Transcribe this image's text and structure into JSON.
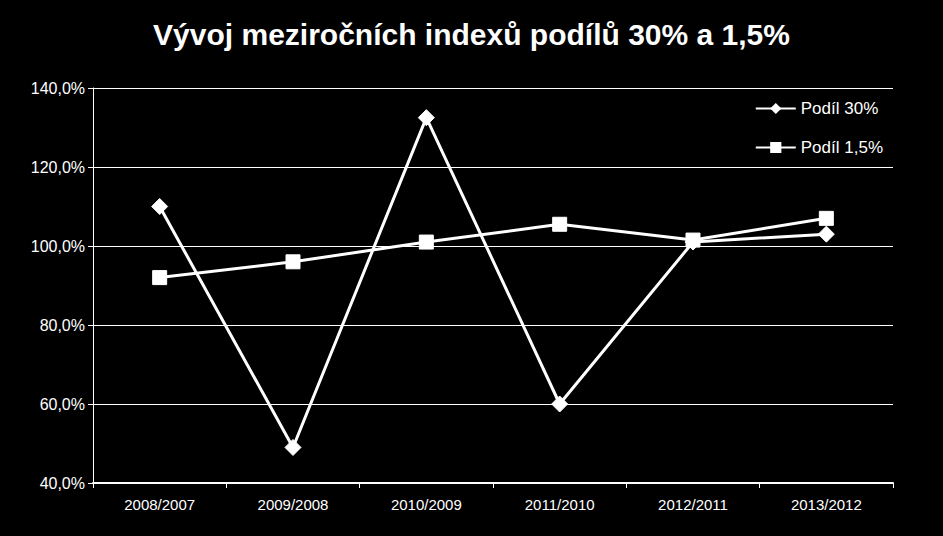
{
  "chart_data": {
    "type": "line",
    "title": "Vývoj meziročních indexů podílů 30% a 1,5%",
    "categories": [
      "2008/2007",
      "2009/2008",
      "2010/2009",
      "2011/2010",
      "2012/2011",
      "2013/2012"
    ],
    "series": [
      {
        "name": "Podíl 30%",
        "color": "#ffffff",
        "marker": "diamond",
        "values": [
          110,
          49,
          132.5,
          60,
          101,
          103
        ]
      },
      {
        "name": "Podíl 1,5%",
        "color": "#ffffff",
        "marker": "square",
        "values": [
          92,
          96,
          101,
          105.5,
          101.5,
          107
        ]
      }
    ],
    "ylim": [
      40,
      140
    ],
    "yticks": [
      {
        "value": 40,
        "label": "40,0%"
      },
      {
        "value": 60,
        "label": "60,0%"
      },
      {
        "value": 80,
        "label": "80,0%"
      },
      {
        "value": 100,
        "label": "100,0%"
      },
      {
        "value": 120,
        "label": "120,0%"
      },
      {
        "value": 140,
        "label": "140,0%"
      }
    ],
    "grid": true,
    "legend": "top-right"
  }
}
